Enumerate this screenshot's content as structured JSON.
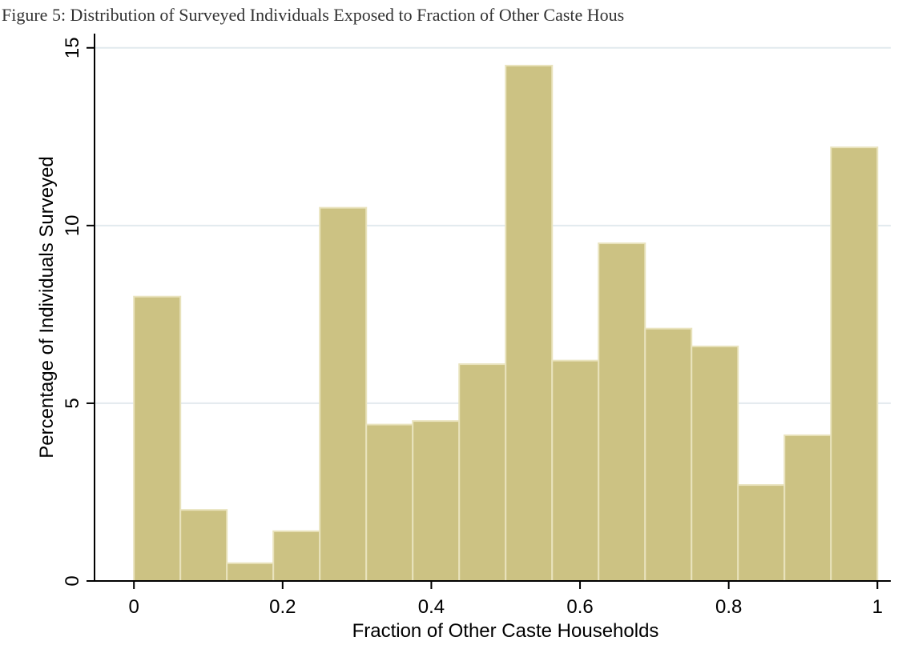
{
  "chart_data": {
    "type": "histogram",
    "title": "Figure 5: Distribution of Surveyed Individuals Exposed to Fraction of Other Caste Hous",
    "x_label": "Fraction of Other Caste Households",
    "y_label": "Percentage of Individuals Surveyed",
    "bins": [
      0,
      0.0625,
      0.125,
      0.1875,
      0.25,
      0.3125,
      0.375,
      0.4375,
      0.5,
      0.5625,
      0.625,
      0.6875,
      0.75,
      0.8125,
      0.875,
      0.9375,
      1
    ],
    "values": [
      8.0,
      2.0,
      0.5,
      1.4,
      10.5,
      4.4,
      4.5,
      6.1,
      14.5,
      6.2,
      9.5,
      7.1,
      6.6,
      2.7,
      4.1,
      12.2
    ],
    "color": "#ccc283",
    "xlim": [
      -0.053,
      1.018
    ],
    "ylim": [
      0,
      15.4
    ],
    "xticks": [
      0,
      0.2,
      0.4,
      0.6,
      0.8,
      1
    ],
    "yticks": [
      0,
      5,
      10,
      15
    ],
    "grid": true
  }
}
